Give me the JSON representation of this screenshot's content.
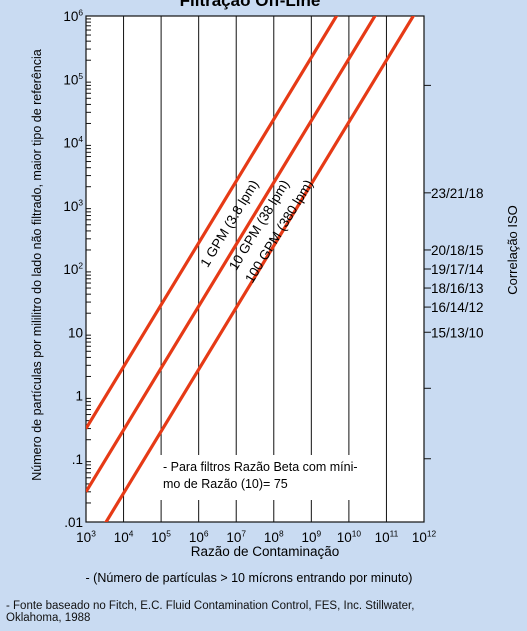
{
  "chart_data": {
    "type": "line",
    "title": "Filtração Off-Line",
    "xlabel": "Razão de Contaminação",
    "xlabel_sub": "- (Número de partículas > 10 mícrons entrando por minuto)",
    "ylabel": "Número de partículas por mililitro do lado não filtrado, maior tipo de referência",
    "right_label": "Correlação ISO",
    "x_scale": "log",
    "y_scale": "log",
    "xlim": [
      1000,
      1000000000000
    ],
    "ylim": [
      0.01,
      1000000
    ],
    "grid": "vertical",
    "x_ticks": [
      {
        "base": "10",
        "exp": "3"
      },
      {
        "base": "10",
        "exp": "4"
      },
      {
        "base": "10",
        "exp": "5"
      },
      {
        "base": "10",
        "exp": "6"
      },
      {
        "base": "10",
        "exp": "7"
      },
      {
        "base": "10",
        "exp": "8"
      },
      {
        "base": "10",
        "exp": "9"
      },
      {
        "base": "10",
        "exp": "10"
      },
      {
        "base": "10",
        "exp": "11"
      },
      {
        "base": "10",
        "exp": "12"
      }
    ],
    "y_ticks": [
      {
        "text": ".01",
        "base": "",
        "exp": ""
      },
      {
        "text": ".1",
        "base": "",
        "exp": ""
      },
      {
        "text": "1",
        "base": "",
        "exp": ""
      },
      {
        "text": "",
        "base": "10",
        "exp": ""
      },
      {
        "text": "",
        "base": "10",
        "exp": "2"
      },
      {
        "text": "",
        "base": "10",
        "exp": "3"
      },
      {
        "text": "",
        "base": "10",
        "exp": "4"
      },
      {
        "text": "",
        "base": "10",
        "exp": "5"
      },
      {
        "text": "",
        "base": "10",
        "exp": "6"
      }
    ],
    "iso_codes": [
      {
        "code": "23/21/18",
        "y": 1600
      },
      {
        "code": "20/18/15",
        "y": 200
      },
      {
        "code": "19/17/14",
        "y": 100
      },
      {
        "code": "18/16/13",
        "y": 50
      },
      {
        "code": "16/14/12",
        "y": 25
      },
      {
        "code": "15/13/10",
        "y": 10
      }
    ],
    "iso_extra_ticks_y": [
      80000,
      1.3,
      0.1
    ],
    "series": [
      {
        "name": "1 GPM (3.8 lpm)",
        "x": [
          1000,
          1000000000000
        ],
        "y": [
          0.3,
          190000000
        ]
      },
      {
        "name": "10 GPM (38 lpm)",
        "x": [
          1000,
          1000000000000
        ],
        "y": [
          0.03,
          19000000
        ]
      },
      {
        "name": "100 GPM (380 lpm)",
        "x": [
          1000,
          1000000000000
        ],
        "y": [
          0.003,
          1900000
        ]
      }
    ],
    "line_color": "#e63a16",
    "annotation": [
      "- Para filtros Razão Beta com míni-",
      "mo de Razão (10)= 75"
    ]
  },
  "footnote": [
    "- Fonte baseado no Fitch, E.C. Fluid Contamination Control, FES, Inc. Stillwater,",
    "Oklahoma, 1988"
  ]
}
